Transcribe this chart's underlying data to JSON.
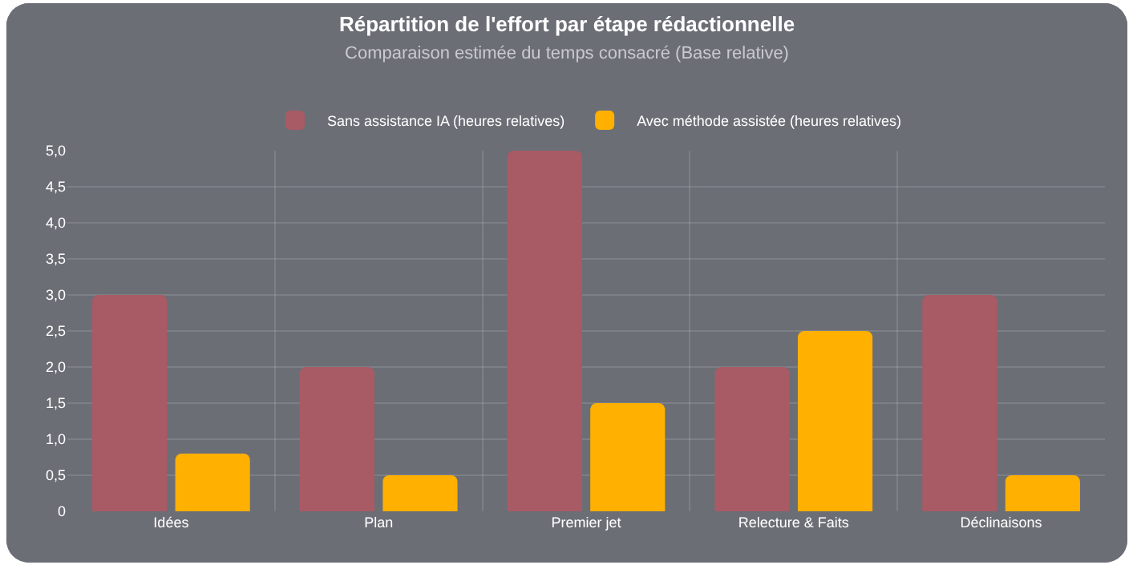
{
  "chart_data": {
    "type": "bar",
    "title": "Répartition de l'effort par étape rédactionnelle",
    "subtitle": "Comparaison estimée du temps consacré (Base relative)",
    "categories": [
      "Idées",
      "Plan",
      "Premier jet",
      "Relecture & Faits",
      "Déclinaisons"
    ],
    "series": [
      {
        "name": "Sans assistance IA (heures relatives)",
        "color": "#a85b64",
        "values": [
          3.0,
          2.0,
          5.0,
          2.0,
          3.0
        ]
      },
      {
        "name": "Avec méthode assistée (heures relatives)",
        "color": "#ffb000",
        "values": [
          0.8,
          0.5,
          1.5,
          2.5,
          0.5
        ]
      }
    ],
    "ylim": [
      0,
      5
    ],
    "yticks": [
      0,
      {
        "value": 0.5,
        "label": "0,5"
      },
      {
        "value": 1,
        "label": "1,0"
      },
      {
        "value": 1.5,
        "label": "1,5"
      },
      {
        "value": 2,
        "label": "2,0"
      },
      {
        "value": 2.5,
        "label": "2,5"
      },
      {
        "value": 3,
        "label": "3,0"
      },
      {
        "value": 3.5,
        "label": "3,5"
      },
      {
        "value": 4,
        "label": "4,0"
      },
      {
        "value": 4.5,
        "label": "4,5"
      },
      {
        "value": 5,
        "label": "5,0"
      }
    ],
    "grid": true,
    "legend": "top"
  }
}
